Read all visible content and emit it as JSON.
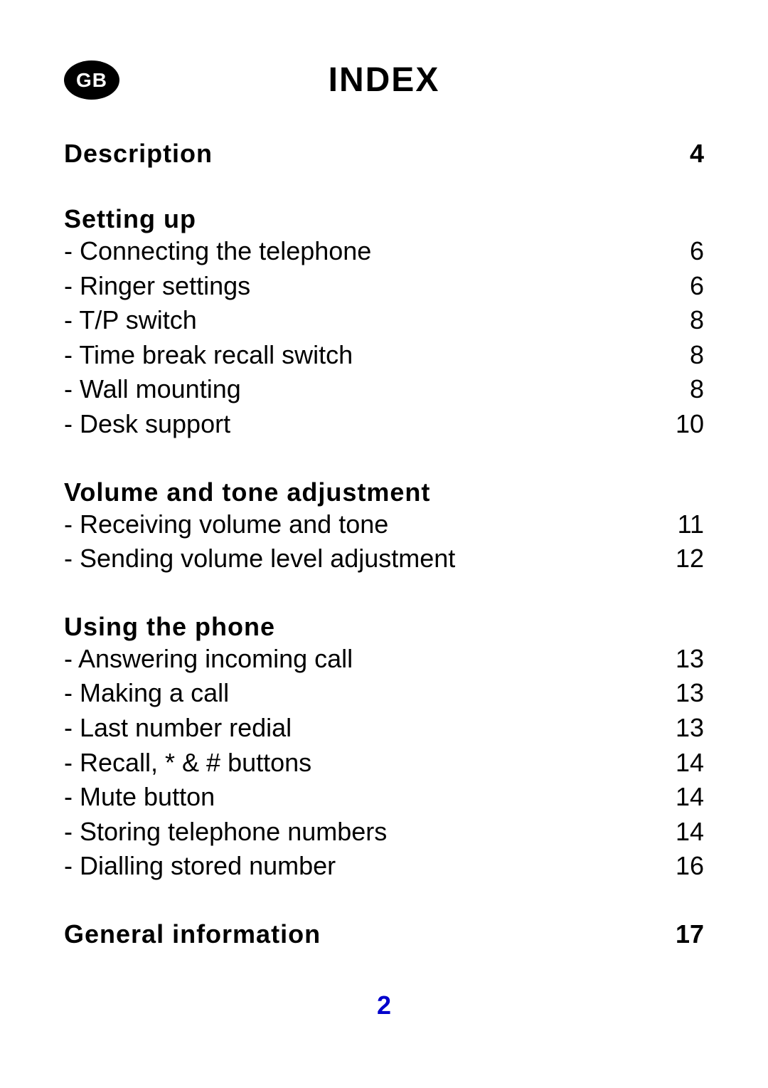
{
  "badge_label": "GB",
  "title": "INDEX",
  "page_number": "2",
  "colors": {
    "badge_bg": "#000000",
    "badge_text": "#ffffff",
    "page_number": "#0000cc",
    "text": "#000000",
    "background": "#ffffff"
  },
  "typography": {
    "title_fontsize": 48,
    "section_title_fontsize": 36,
    "item_fontsize": 36,
    "badge_fontsize": 28,
    "page_number_fontsize": 36
  },
  "sections": [
    {
      "title": "Description",
      "page": "4",
      "items": []
    },
    {
      "title": "Setting up",
      "page": "",
      "items": [
        {
          "label": "- Connecting the telephone",
          "page": "6"
        },
        {
          "label": "- Ringer settings",
          "page": "6"
        },
        {
          "label": "- T/P switch",
          "page": "8"
        },
        {
          "label": "- Time break recall switch",
          "page": "8"
        },
        {
          "label": "- Wall mounting",
          "page": "8"
        },
        {
          "label": "- Desk support",
          "page": "10"
        }
      ]
    },
    {
      "title": "Volume and tone adjustment",
      "page": "",
      "items": [
        {
          "label": "- Receiving volume and tone",
          "page": "11"
        },
        {
          "label": "- Sending volume level adjustment",
          "page": "12"
        }
      ]
    },
    {
      "title": "Using the phone",
      "page": "",
      "items": [
        {
          "label": "- Answering incoming call",
          "page": "13"
        },
        {
          "label": "- Making a call",
          "page": "13"
        },
        {
          "label": "- Last number redial",
          "page": "13"
        },
        {
          "label": "- Recall, * & # buttons",
          "page": "14"
        },
        {
          "label": "- Mute button",
          "page": "14"
        },
        {
          "label": "- Storing telephone numbers",
          "page": "14"
        },
        {
          "label": "- Dialling stored number",
          "page": "16"
        }
      ]
    },
    {
      "title": "General information",
      "page": "17",
      "items": []
    }
  ]
}
